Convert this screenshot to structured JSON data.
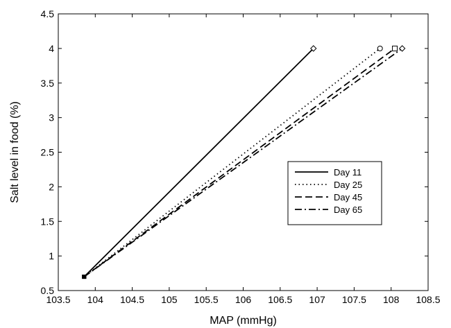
{
  "chart_data": {
    "type": "line",
    "title": "",
    "xlabel": "MAP (mmHg)",
    "ylabel": "Salt level in food (%)",
    "xlim": [
      103.5,
      108.5
    ],
    "ylim": [
      0.5,
      4.5
    ],
    "xticks": [
      103.5,
      104,
      104.5,
      105,
      105.5,
      106,
      106.5,
      107,
      107.5,
      108,
      108.5
    ],
    "yticks": [
      0.5,
      1,
      1.5,
      2,
      2.5,
      3,
      3.5,
      4,
      4.5
    ],
    "xtick_labels": [
      "103.5",
      "104",
      "104.5",
      "105",
      "105.5",
      "106",
      "106.5",
      "107",
      "107.5",
      "108",
      "108.5"
    ],
    "ytick_labels": [
      "0.5",
      "1",
      "1.5",
      "2",
      "2.5",
      "3",
      "3.5",
      "4",
      "4.5"
    ],
    "grid": false,
    "legend_position": "center-right",
    "series": [
      {
        "name": "Day 11",
        "style": "solid",
        "marker": "diamond",
        "color": "#000000",
        "x": [
          103.85,
          106.95
        ],
        "y": [
          0.7,
          4.0
        ]
      },
      {
        "name": "Day 25",
        "style": "dotted",
        "marker": "circle",
        "color": "#000000",
        "x": [
          103.85,
          107.85
        ],
        "y": [
          0.7,
          4.0
        ]
      },
      {
        "name": "Day 45",
        "style": "dashed",
        "marker": "square",
        "color": "#000000",
        "x": [
          103.85,
          108.05
        ],
        "y": [
          0.7,
          4.0
        ]
      },
      {
        "name": "Day 65",
        "style": "dashdot",
        "marker": "diamond",
        "color": "#000000",
        "x": [
          103.85,
          108.15
        ],
        "y": [
          0.7,
          4.0
        ]
      }
    ]
  }
}
